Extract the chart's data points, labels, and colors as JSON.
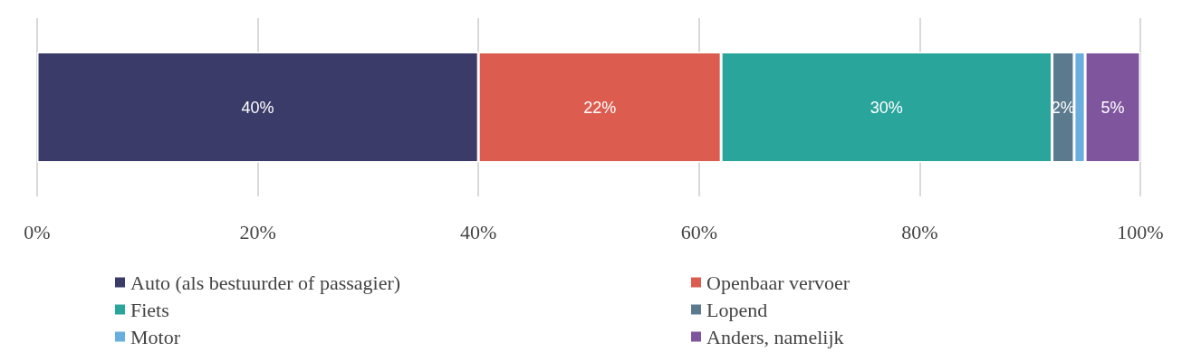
{
  "chart_data": {
    "type": "bar",
    "orientation": "horizontal",
    "stacked": true,
    "categories": [
      null
    ],
    "series": [
      {
        "name": "Auto (als bestuurder of passagier)",
        "color": "#3a3b68",
        "values": [
          40
        ],
        "value_labels": [
          "40%"
        ]
      },
      {
        "name": "Openbaar vervoer",
        "color": "#dd5c50",
        "values": [
          22
        ],
        "value_labels": [
          "22%"
        ]
      },
      {
        "name": "Fiets",
        "color": "#2aa59c",
        "values": [
          30
        ],
        "value_labels": [
          "30%"
        ]
      },
      {
        "name": "Lopend",
        "color": "#5b7a8e",
        "values": [
          2
        ],
        "value_labels": [
          "2%"
        ]
      },
      {
        "name": "Motor",
        "color": "#6aaee0",
        "values": [
          1
        ],
        "value_labels": [
          null
        ]
      },
      {
        "name": "Anders, namelijk",
        "color": "#7f559e",
        "values": [
          5
        ],
        "value_labels": [
          "5%"
        ]
      }
    ],
    "xlim": [
      0,
      100
    ],
    "xticks": [
      {
        "value": 0,
        "label": "0%"
      },
      {
        "value": 20,
        "label": "20%"
      },
      {
        "value": 40,
        "label": "40%"
      },
      {
        "value": 60,
        "label": "60%"
      },
      {
        "value": 80,
        "label": "80%"
      },
      {
        "value": 100,
        "label": "100%"
      }
    ],
    "grid": "x",
    "legend": "bottom"
  }
}
